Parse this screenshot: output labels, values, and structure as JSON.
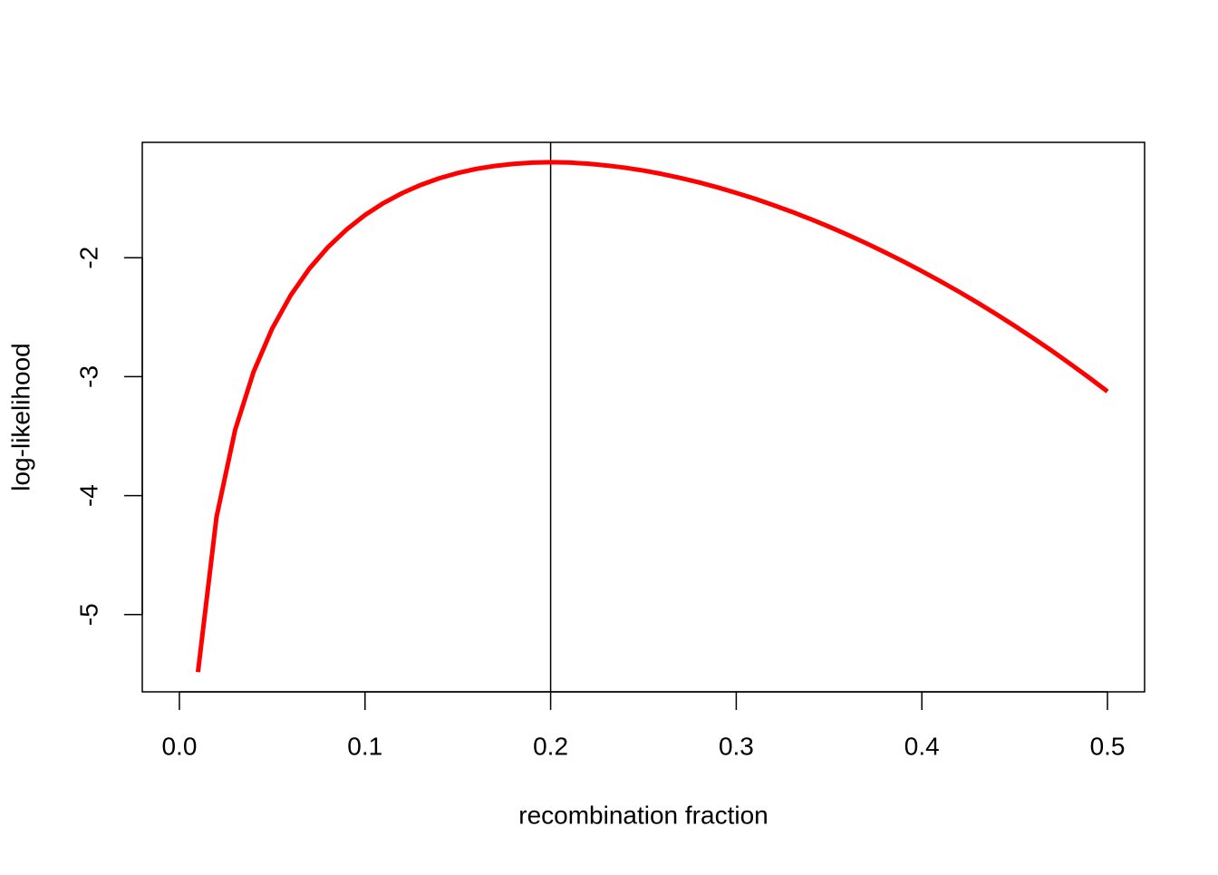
{
  "chart_data": {
    "type": "line",
    "xlabel": "recombination fraction",
    "ylabel": "log-likelihood",
    "x": [
      0.01,
      0.02,
      0.03,
      0.04,
      0.05,
      0.06,
      0.07,
      0.08,
      0.09,
      0.1,
      0.11,
      0.12,
      0.13,
      0.14,
      0.15,
      0.16,
      0.17,
      0.18,
      0.19,
      0.2,
      0.21,
      0.22,
      0.23,
      0.24,
      0.25,
      0.26,
      0.27,
      0.28,
      0.29,
      0.3,
      0.31,
      0.32,
      0.33,
      0.34,
      0.35,
      0.36,
      0.37,
      0.38,
      0.39,
      0.4,
      0.41,
      0.42,
      0.43,
      0.44,
      0.45,
      0.46,
      0.47,
      0.48,
      0.49,
      0.5
    ],
    "values": [
      -5.484,
      -4.179,
      -3.45,
      -2.958,
      -2.595,
      -2.315,
      -2.092,
      -1.912,
      -1.764,
      -1.641,
      -1.54,
      -1.457,
      -1.388,
      -1.332,
      -1.288,
      -1.253,
      -1.228,
      -1.211,
      -1.201,
      -1.197,
      -1.2,
      -1.209,
      -1.224,
      -1.243,
      -1.267,
      -1.296,
      -1.33,
      -1.367,
      -1.409,
      -1.455,
      -1.504,
      -1.558,
      -1.614,
      -1.675,
      -1.739,
      -1.807,
      -1.878,
      -1.953,
      -2.031,
      -2.113,
      -2.198,
      -2.286,
      -2.378,
      -2.474,
      -2.573,
      -2.676,
      -2.782,
      -2.893,
      -3.007,
      -3.125
    ],
    "color": "#ff0000",
    "vline": 0.2,
    "xlim": [
      -0.02,
      0.52
    ],
    "ylim": [
      -5.65,
      -1.03
    ],
    "xticks": [
      {
        "value": 0,
        "label": "0.0"
      },
      0.1,
      0.2,
      0.3,
      0.4,
      0.5
    ],
    "yticks": [
      -5,
      -4,
      -3,
      -2
    ]
  }
}
